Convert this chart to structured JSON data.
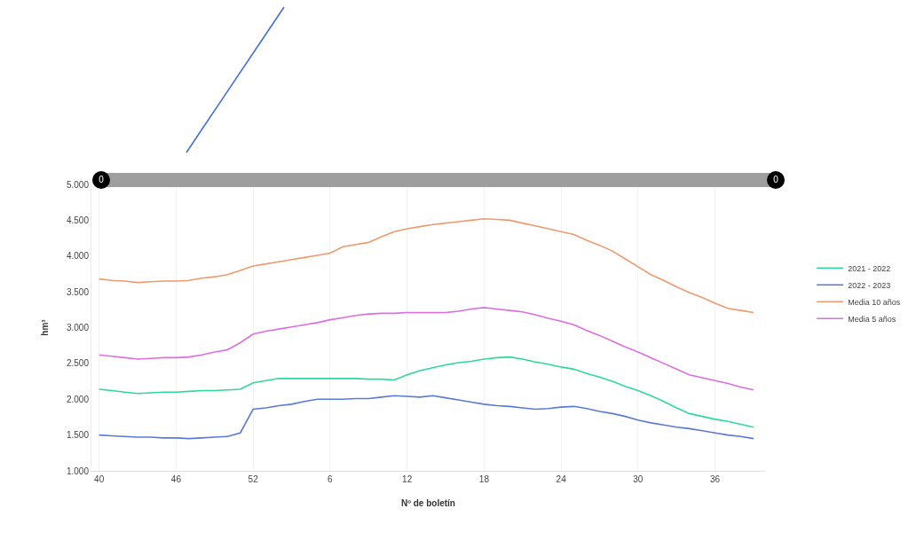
{
  "chart_data": {
    "type": "line",
    "xlabel": "Nº de boletín",
    "ylabel": "hm³",
    "categories": [
      "40",
      null,
      null,
      null,
      null,
      null,
      "46",
      null,
      null,
      null,
      null,
      null,
      "52",
      null,
      null,
      null,
      null,
      null,
      "6",
      null,
      null,
      null,
      null,
      null,
      "12",
      null,
      null,
      null,
      null,
      null,
      "18",
      null,
      null,
      null,
      null,
      null,
      "24",
      null,
      null,
      null,
      null,
      null,
      "30",
      null,
      null,
      null,
      null,
      null,
      "36",
      null,
      null,
      null
    ],
    "ylim": [
      1000,
      5000
    ],
    "yticks": [
      {
        "value": 1000,
        "label": "1.000"
      },
      {
        "value": 1500,
        "label": "1.500"
      },
      {
        "value": 2000,
        "label": "2.000"
      },
      {
        "value": 2500,
        "label": "2.500"
      },
      {
        "value": 3000,
        "label": "3.000"
      },
      {
        "value": 3500,
        "label": "3.500"
      },
      {
        "value": 4000,
        "label": "4.000"
      },
      {
        "value": 4500,
        "label": "4.500"
      },
      {
        "value": 5000,
        "label": "5.000"
      }
    ],
    "grid": "x",
    "legend": "right",
    "marker": "none",
    "line_style": "solid",
    "annotations": [
      "0",
      "0"
    ],
    "series": [
      {
        "name": "2021 - 2022",
        "color": "#2fd99a",
        "values": [
          2140,
          2120,
          2100,
          2080,
          2090,
          2100,
          2100,
          2110,
          2120,
          2120,
          2130,
          2140,
          2230,
          2260,
          2290,
          2290,
          2290,
          2290,
          2290,
          2290,
          2290,
          2280,
          2280,
          2270,
          2340,
          2400,
          2440,
          2480,
          2510,
          2530,
          2560,
          2580,
          2590,
          2560,
          2520,
          2490,
          2450,
          2420,
          2360,
          2310,
          2250,
          2180,
          2120,
          2050,
          1970,
          1880,
          1800,
          1760,
          1720,
          1690,
          1650,
          1610
        ]
      },
      {
        "name": "2022 - 2023",
        "color": "#5b79d6",
        "values": [
          1500,
          1490,
          1480,
          1470,
          1470,
          1460,
          1460,
          1450,
          1460,
          1470,
          1480,
          1530,
          1860,
          1880,
          1910,
          1930,
          1970,
          2000,
          2000,
          2000,
          2010,
          2010,
          2030,
          2050,
          2040,
          2030,
          2050,
          2020,
          1990,
          1960,
          1930,
          1910,
          1900,
          1880,
          1860,
          1870,
          1890,
          1900,
          1870,
          1830,
          1800,
          1760,
          1710,
          1670,
          1640,
          1610,
          1590,
          1560,
          1530,
          1500,
          1480,
          1450
        ]
      },
      {
        "name": "Media 10 años",
        "color": "#ec9a6e",
        "values": [
          3680,
          3660,
          3650,
          3630,
          3640,
          3650,
          3650,
          3660,
          3690,
          3710,
          3740,
          3800,
          3860,
          3890,
          3920,
          3950,
          3980,
          4010,
          4040,
          4130,
          4160,
          4190,
          4270,
          4340,
          4380,
          4410,
          4440,
          4460,
          4480,
          4500,
          4520,
          4510,
          4500,
          4460,
          4420,
          4380,
          4340,
          4300,
          4220,
          4150,
          4070,
          3960,
          3850,
          3740,
          3660,
          3570,
          3490,
          3420,
          3340,
          3270,
          3240,
          3210
        ]
      },
      {
        "name": "Media 5 años",
        "color": "#dc6ee0",
        "values": [
          2620,
          2600,
          2580,
          2560,
          2570,
          2580,
          2580,
          2590,
          2620,
          2660,
          2690,
          2790,
          2910,
          2950,
          2980,
          3010,
          3040,
          3070,
          3110,
          3140,
          3170,
          3190,
          3200,
          3200,
          3210,
          3210,
          3210,
          3210,
          3230,
          3260,
          3280,
          3260,
          3240,
          3220,
          3180,
          3130,
          3090,
          3040,
          2960,
          2890,
          2810,
          2730,
          2660,
          2580,
          2500,
          2420,
          2340,
          2300,
          2260,
          2220,
          2170,
          2130
        ]
      }
    ]
  }
}
